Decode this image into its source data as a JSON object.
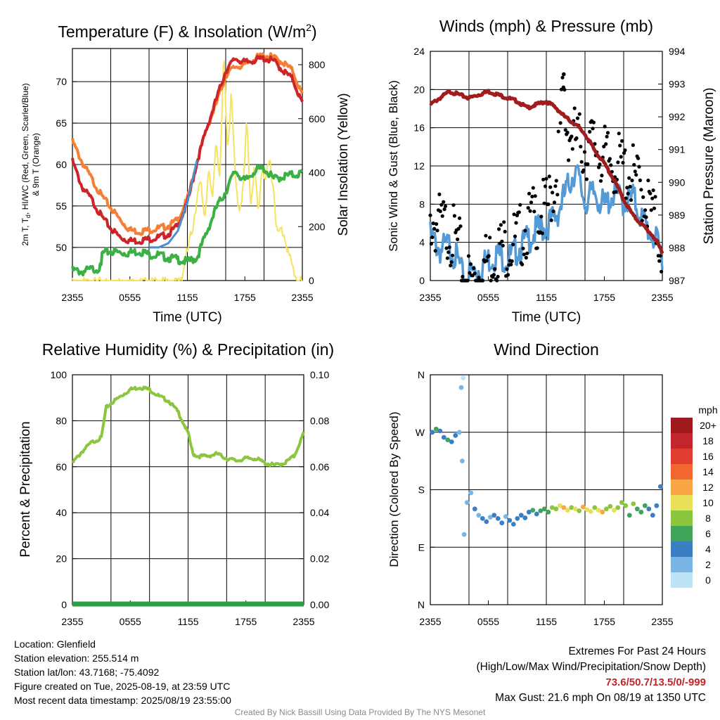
{
  "panels": [
    {
      "id": "temperature",
      "title_main": "Temperature (F) & Insolation (W/m",
      "title_sup": "2",
      "title_end": ")",
      "ylabel_left_line1": "2m T, T",
      "ylabel_left_sub": "d",
      "ylabel_left_line1b": ", HI/WC (Red, Green, Scarlet/Blue)",
      "ylabel_left_line2": "& 9m T (Orange)",
      "ylabel_right": "Solar Insolation (Yellow)",
      "xlabel": "Time (UTC)",
      "xticks": [
        "2355",
        "0555",
        "1155",
        "1755",
        "2355"
      ],
      "yticks_left": [
        "50",
        "55",
        "60",
        "65",
        "70"
      ],
      "yticks_right": [
        "0",
        "200",
        "400",
        "600",
        "800"
      ],
      "ylim_left": [
        46,
        74
      ],
      "ylim_right": [
        0,
        860
      ]
    },
    {
      "id": "winds",
      "title_main": "Winds (mph) & Pressure (mb)",
      "ylabel_left": "Sonic Wind & Gust (Blue, Black)",
      "ylabel_right": "Station Pressure (Maroon)",
      "xlabel": "Time (UTC)",
      "xticks": [
        "2355",
        "0555",
        "1155",
        "1755",
        "2355"
      ],
      "yticks_left": [
        "0",
        "4",
        "8",
        "12",
        "16",
        "20",
        "24"
      ],
      "yticks_right": [
        "987",
        "988",
        "989",
        "990",
        "991",
        "992",
        "993",
        "994"
      ],
      "ylim_left": [
        0,
        24
      ],
      "ylim_right": [
        987,
        994
      ]
    },
    {
      "id": "humidity",
      "title_main": "Relative Humidity (%) & Precipitation (in)",
      "ylabel_left": "Percent & Precipitation",
      "xticks": [
        "2355",
        "0555",
        "1155",
        "1755",
        "2355"
      ],
      "yticks_left": [
        "0",
        "20",
        "40",
        "60",
        "80",
        "100"
      ],
      "yticks_right": [
        "0.00",
        "0.02",
        "0.04",
        "0.06",
        "0.08",
        "0.10"
      ],
      "ylim_left": [
        0,
        100
      ],
      "ylim_right": [
        0,
        0.1
      ]
    },
    {
      "id": "direction",
      "title_main": "Wind Direction",
      "ylabel_left": "Direction (Colored By Speed)",
      "xticks": [
        "2355",
        "0555",
        "1155",
        "1755",
        "2355"
      ],
      "yticks_left": [
        "N",
        "E",
        "S",
        "W",
        "N"
      ],
      "colorbar_title": "mph",
      "colorbar_labels": [
        "20+",
        "18",
        "16",
        "14",
        "12",
        "10",
        "8",
        "6",
        "4",
        "2",
        "0"
      ]
    }
  ],
  "colors": {
    "temperature": "#cc2427",
    "dewpoint": "#3bb044",
    "nine_m": "#f47f35",
    "heat_index_blue": "#4a8fce",
    "insolation": "#f5e361",
    "wind": "#549ad6",
    "gust": "#000000",
    "pressure": "#a01c1e",
    "humidity": "#8cc63f",
    "precip": "#2ea043",
    "extremes": "#c0262b",
    "colorbar": [
      "#9e1a1c",
      "#c0262b",
      "#e23b30",
      "#f2672f",
      "#f9a647",
      "#e8e057",
      "#8cc63f",
      "#3fa35a",
      "#3b7fc3",
      "#79b6e6",
      "#bfe3f6"
    ]
  },
  "chart_data": [
    {
      "type": "line",
      "panel": "temperature",
      "x_units": "hours since 2355 UTC",
      "xlim": [
        0,
        24
      ],
      "series": [
        {
          "name": "2m T",
          "axis": "left",
          "x": [
            0,
            1,
            2,
            3,
            4,
            5,
            6,
            7,
            8,
            9,
            10,
            11,
            12,
            13,
            14,
            15,
            16,
            17,
            18,
            19,
            20,
            21,
            22,
            23,
            24
          ],
          "values": [
            60.6,
            57.5,
            56.0,
            54.0,
            52.5,
            51.4,
            51.0,
            51.0,
            51.2,
            51.4,
            51.8,
            52.8,
            55.5,
            60.5,
            64.5,
            68.0,
            71.5,
            73.0,
            72.5,
            72.8,
            73.0,
            72.7,
            71.5,
            70.5,
            67.5
          ]
        },
        {
          "name": "9m T",
          "axis": "left",
          "x": [
            0,
            1,
            2,
            3,
            4,
            5,
            6,
            7,
            8,
            9,
            10,
            11,
            12,
            13,
            14,
            15,
            16,
            17,
            18,
            19,
            20,
            21,
            22,
            23,
            24
          ],
          "values": [
            63.0,
            60.5,
            58.5,
            56.5,
            55.0,
            53.5,
            52.3,
            52.1,
            52.3,
            52.5,
            52.8,
            53.5,
            56.0,
            60.5,
            64.5,
            67.5,
            71.0,
            72.0,
            72.2,
            73.0,
            73.4,
            73.1,
            72.5,
            71.5,
            68.5
          ]
        },
        {
          "name": "Td",
          "axis": "left",
          "x": [
            0,
            1,
            2,
            3,
            3.1,
            4,
            5,
            6,
            7,
            8,
            9,
            10,
            11,
            12,
            13,
            14,
            15,
            16,
            17,
            18,
            19,
            20,
            21,
            22,
            23,
            24
          ],
          "values": [
            47.5,
            47.3,
            47.6,
            47.8,
            49.5,
            49.8,
            49.6,
            49.6,
            49.8,
            49.4,
            49.3,
            49.0,
            48.8,
            48.5,
            49.0,
            52.0,
            55.0,
            57.0,
            59.5,
            58.2,
            59.5,
            59.8,
            58.5,
            58.8,
            59.0,
            59.2
          ]
        },
        {
          "name": "HI/WC",
          "axis": "left",
          "x": [
            8,
            9,
            10,
            11,
            12,
            13
          ],
          "values": [
            50.0,
            50.0,
            50.5,
            52.0,
            55.5,
            60.5
          ]
        },
        {
          "name": "Insolation",
          "axis": "right",
          "x": [
            0,
            11.0,
            11.5,
            12.0,
            12.5,
            13.0,
            13.4,
            13.8,
            14.2,
            14.6,
            15.0,
            15.4,
            15.8,
            16.2,
            16.6,
            17.0,
            17.4,
            17.8,
            18.2,
            18.6,
            19.0,
            19.4,
            19.8,
            20.2,
            20.6,
            21.0,
            21.4,
            21.8,
            22.2,
            22.6,
            23.0,
            23.4,
            24
          ],
          "values": [
            0,
            0,
            40,
            120,
            200,
            320,
            370,
            250,
            420,
            300,
            550,
            380,
            850,
            500,
            700,
            380,
            280,
            340,
            600,
            300,
            430,
            260,
            440,
            380,
            460,
            350,
            180,
            200,
            180,
            100,
            60,
            20,
            0
          ]
        }
      ],
      "xlabel": "Time (UTC)",
      "ylim": [
        46,
        74
      ]
    },
    {
      "type": "line",
      "panel": "winds",
      "x_units": "hours since 2355 UTC",
      "xlim": [
        0,
        24
      ],
      "series": [
        {
          "name": "Sonic Wind",
          "axis": "left",
          "x": [
            0,
            1,
            2,
            3,
            3.5,
            4,
            5,
            6,
            7,
            8,
            9,
            10,
            11,
            12,
            13,
            14,
            15,
            16,
            17,
            18,
            19,
            20,
            21,
            22,
            23,
            24
          ],
          "values": [
            5.5,
            4.0,
            4.5,
            2.5,
            0.5,
            1.5,
            2.0,
            3.0,
            3.5,
            3.0,
            4.0,
            5.0,
            6.0,
            6.5,
            7.5,
            10.0,
            12.5,
            9.0,
            10.0,
            8.5,
            10.0,
            9.0,
            9.5,
            7.0,
            5.5,
            3.5
          ]
        },
        {
          "name": "Gust",
          "axis": "left",
          "x": [
            0,
            1,
            2,
            2.5,
            3,
            3.5,
            4,
            5,
            6,
            7,
            8,
            9,
            10,
            11,
            12,
            13,
            13.8,
            14,
            15,
            16,
            17,
            18,
            19,
            20,
            21,
            22,
            23,
            24
          ],
          "values": [
            8.0,
            7.5,
            7.0,
            6.0,
            5.0,
            2.0,
            1.5,
            2.5,
            4.0,
            5.0,
            5.5,
            6.0,
            7.5,
            8.5,
            9.0,
            12.5,
            21.6,
            18.0,
            16.5,
            15.5,
            16.0,
            14.5,
            14.0,
            13.5,
            12.5,
            11.0,
            8.5,
            5.0
          ]
        },
        {
          "name": "Station Pressure",
          "axis": "right",
          "x": [
            0,
            1,
            2,
            3,
            4,
            5,
            6,
            7,
            8,
            9,
            10,
            11,
            12,
            13,
            14,
            15,
            16,
            17,
            18,
            19,
            20,
            21,
            22,
            23,
            24
          ],
          "values": [
            992.4,
            992.6,
            992.8,
            992.7,
            992.6,
            992.7,
            992.8,
            992.7,
            992.6,
            992.5,
            992.3,
            992.4,
            992.5,
            992.3,
            992.0,
            991.8,
            991.5,
            991.0,
            990.6,
            990.1,
            989.5,
            989.0,
            988.7,
            988.4,
            987.9
          ]
        }
      ],
      "xlabel": "Time (UTC)",
      "ylim": [
        0,
        24
      ]
    },
    {
      "type": "line",
      "panel": "humidity",
      "x_units": "hours since 2355 UTC",
      "xlim": [
        0,
        24
      ],
      "series": [
        {
          "name": "Relative Humidity",
          "axis": "left",
          "x": [
            0,
            1,
            2,
            3,
            3.5,
            4,
            5,
            6,
            7,
            8,
            9,
            10,
            11,
            12,
            12.5,
            13,
            14,
            15,
            16,
            17,
            18,
            19,
            20,
            21,
            22,
            23,
            24
          ],
          "values": [
            62,
            67,
            71,
            73,
            86,
            88,
            91,
            94,
            95,
            94,
            91,
            89,
            84,
            75,
            66,
            65,
            65,
            66,
            64,
            63,
            64,
            64,
            62,
            61,
            62,
            65,
            75
          ]
        },
        {
          "name": "Precipitation",
          "axis": "right",
          "x": [
            0,
            24
          ],
          "values": [
            0,
            0
          ]
        }
      ],
      "ylim": [
        0,
        100
      ]
    },
    {
      "type": "scatter",
      "panel": "direction",
      "x_units": "hours since 2355 UTC",
      "xlim": [
        0,
        24
      ],
      "y_units": "degrees",
      "ylim": [
        0,
        360
      ],
      "points": [
        {
          "x": 0.2,
          "dir": 270,
          "speed": 4
        },
        {
          "x": 0.6,
          "dir": 275,
          "speed": 5
        },
        {
          "x": 1.0,
          "dir": 272,
          "speed": 4
        },
        {
          "x": 1.4,
          "dir": 262,
          "speed": 4
        },
        {
          "x": 1.8,
          "dir": 258,
          "speed": 5
        },
        {
          "x": 2.2,
          "dir": 255,
          "speed": 4
        },
        {
          "x": 2.6,
          "dir": 265,
          "speed": 4
        },
        {
          "x": 3.0,
          "dir": 270,
          "speed": 2
        },
        {
          "x": 3.2,
          "dir": 340,
          "speed": 1
        },
        {
          "x": 3.4,
          "dir": 355,
          "speed": 0
        },
        {
          "x": 3.3,
          "dir": 225,
          "speed": 1
        },
        {
          "x": 3.5,
          "dir": 110,
          "speed": 1
        },
        {
          "x": 3.8,
          "dir": 160,
          "speed": 2
        },
        {
          "x": 4.2,
          "dir": 175,
          "speed": 1
        },
        {
          "x": 4.6,
          "dir": 150,
          "speed": 3
        },
        {
          "x": 5.0,
          "dir": 140,
          "speed": 2
        },
        {
          "x": 5.4,
          "dir": 135,
          "speed": 3
        },
        {
          "x": 5.8,
          "dir": 130,
          "speed": 4
        },
        {
          "x": 6.2,
          "dir": 137,
          "speed": 2
        },
        {
          "x": 6.6,
          "dir": 140,
          "speed": 3
        },
        {
          "x": 7.0,
          "dir": 135,
          "speed": 4
        },
        {
          "x": 7.4,
          "dir": 128,
          "speed": 3
        },
        {
          "x": 7.8,
          "dir": 138,
          "speed": 2
        },
        {
          "x": 8.2,
          "dir": 132,
          "speed": 4
        },
        {
          "x": 8.6,
          "dir": 126,
          "speed": 4
        },
        {
          "x": 9.0,
          "dir": 135,
          "speed": 3
        },
        {
          "x": 9.4,
          "dir": 140,
          "speed": 4
        },
        {
          "x": 9.8,
          "dir": 136,
          "speed": 4
        },
        {
          "x": 10.2,
          "dir": 145,
          "speed": 4
        },
        {
          "x": 10.6,
          "dir": 148,
          "speed": 5
        },
        {
          "x": 11.0,
          "dir": 142,
          "speed": 4
        },
        {
          "x": 11.4,
          "dir": 147,
          "speed": 6
        },
        {
          "x": 11.8,
          "dir": 150,
          "speed": 6
        },
        {
          "x": 12.2,
          "dir": 145,
          "speed": 5
        },
        {
          "x": 12.6,
          "dir": 152,
          "speed": 7
        },
        {
          "x": 13.0,
          "dir": 150,
          "speed": 8
        },
        {
          "x": 13.4,
          "dir": 155,
          "speed": 9
        },
        {
          "x": 13.8,
          "dir": 152,
          "speed": 12
        },
        {
          "x": 14.2,
          "dir": 148,
          "speed": 9
        },
        {
          "x": 14.6,
          "dir": 152,
          "speed": 8
        },
        {
          "x": 15.0,
          "dir": 150,
          "speed": 10
        },
        {
          "x": 15.4,
          "dir": 147,
          "speed": 8
        },
        {
          "x": 15.8,
          "dir": 153,
          "speed": 11
        },
        {
          "x": 16.2,
          "dir": 149,
          "speed": 9
        },
        {
          "x": 16.6,
          "dir": 146,
          "speed": 10
        },
        {
          "x": 17.0,
          "dir": 152,
          "speed": 8
        },
        {
          "x": 17.4,
          "dir": 148,
          "speed": 9
        },
        {
          "x": 17.8,
          "dir": 145,
          "speed": 11
        },
        {
          "x": 18.2,
          "dir": 150,
          "speed": 8
        },
        {
          "x": 18.6,
          "dir": 154,
          "speed": 7
        },
        {
          "x": 19.0,
          "dir": 148,
          "speed": 9
        },
        {
          "x": 19.4,
          "dir": 152,
          "speed": 8
        },
        {
          "x": 19.8,
          "dir": 160,
          "speed": 8
        },
        {
          "x": 20.2,
          "dir": 155,
          "speed": 7
        },
        {
          "x": 20.6,
          "dir": 140,
          "speed": 6
        },
        {
          "x": 21.0,
          "dir": 158,
          "speed": 8
        },
        {
          "x": 21.4,
          "dir": 150,
          "speed": 6
        },
        {
          "x": 21.8,
          "dir": 145,
          "speed": 5
        },
        {
          "x": 22.2,
          "dir": 155,
          "speed": 6
        },
        {
          "x": 22.6,
          "dir": 150,
          "speed": 4
        },
        {
          "x": 23.0,
          "dir": 140,
          "speed": 4
        },
        {
          "x": 23.4,
          "dir": 155,
          "speed": 3
        },
        {
          "x": 23.8,
          "dir": 185,
          "speed": 4
        }
      ]
    }
  ],
  "info": {
    "location": "Location: Glenfield",
    "elevation": "Station elevation: 255.514 m",
    "latlon": "Station lat/lon: 43.7168; -75.4092",
    "created": "Figure created on Tue, 2025-08-19, at 23:59 UTC",
    "recent": "Most recent data timestamp: 2025/08/19 23:55:00",
    "extremes_title": "Extremes For Past 24 Hours",
    "extremes_subtitle": "(High/Low/Max Wind/Precipitation/Snow Depth)",
    "extremes_values": "73.6/50.7/13.5/0/-999",
    "max_gust": "Max Gust: 21.6 mph On 08/19 at 1350 UTC",
    "credit": "Created By Nick Bassill Using Data Provided By The NYS Mesonet"
  }
}
